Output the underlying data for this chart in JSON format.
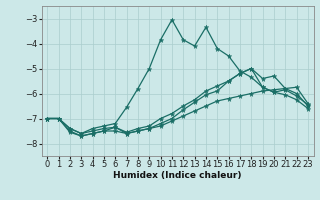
{
  "bg_color": "#cce8e8",
  "grid_color": "#aacece",
  "line_color": "#1a6e66",
  "xlabel": "Humidex (Indice chaleur)",
  "xlim": [
    -0.5,
    23.5
  ],
  "ylim": [
    -8.5,
    -2.5
  ],
  "yticks": [
    -8,
    -7,
    -6,
    -5,
    -4,
    -3
  ],
  "xticks": [
    0,
    1,
    2,
    3,
    4,
    5,
    6,
    7,
    8,
    9,
    10,
    11,
    12,
    13,
    14,
    15,
    16,
    17,
    18,
    19,
    20,
    21,
    22,
    23
  ],
  "series": [
    {
      "x": [
        0,
        1,
        2,
        3,
        4,
        5,
        6,
        7,
        8,
        9,
        10,
        11,
        12,
        13,
        14,
        15,
        16,
        17,
        18,
        19,
        20,
        21,
        22,
        23
      ],
      "y": [
        -7.0,
        -7.0,
        -7.5,
        -7.7,
        -7.6,
        -7.5,
        -7.5,
        -7.6,
        -7.5,
        -7.4,
        -7.3,
        -7.1,
        -6.9,
        -6.7,
        -6.5,
        -6.3,
        -6.2,
        -6.1,
        -6.0,
        -5.9,
        -5.85,
        -5.8,
        -5.75,
        -6.4
      ]
    },
    {
      "x": [
        0,
        1,
        2,
        3,
        4,
        5,
        6,
        7,
        8,
        9,
        10,
        11,
        12,
        13,
        14,
        15,
        16,
        17,
        18,
        19,
        20,
        21,
        22,
        23
      ],
      "y": [
        -7.0,
        -7.0,
        -7.4,
        -7.6,
        -7.5,
        -7.4,
        -7.35,
        -7.55,
        -7.4,
        -7.3,
        -7.0,
        -6.8,
        -6.5,
        -6.25,
        -5.9,
        -5.7,
        -5.5,
        -5.2,
        -5.0,
        -5.4,
        -5.3,
        -5.8,
        -6.0,
        -6.5
      ]
    },
    {
      "x": [
        0,
        1,
        2,
        3,
        4,
        5,
        6,
        7,
        8,
        9,
        10,
        11,
        12,
        13,
        14,
        15,
        16,
        17,
        18,
        19,
        20,
        21,
        22,
        23
      ],
      "y": [
        -7.0,
        -7.0,
        -7.4,
        -7.6,
        -7.4,
        -7.3,
        -7.2,
        -6.55,
        -5.8,
        -5.0,
        -3.85,
        -3.05,
        -3.85,
        -4.1,
        -3.35,
        -4.2,
        -4.5,
        -5.1,
        -5.35,
        -5.75,
        -5.95,
        -5.85,
        -6.1,
        -6.45
      ]
    },
    {
      "x": [
        0,
        1,
        2,
        3,
        4,
        5,
        6,
        7,
        8,
        9,
        10,
        11,
        12,
        13,
        14,
        15,
        16,
        17,
        18,
        19,
        20,
        21,
        22,
        23
      ],
      "y": [
        -7.0,
        -7.0,
        -7.55,
        -7.7,
        -7.6,
        -7.5,
        -7.35,
        -7.6,
        -7.5,
        -7.4,
        -7.2,
        -7.0,
        -6.65,
        -6.35,
        -6.05,
        -5.9,
        -5.5,
        -5.2,
        -5.0,
        -5.75,
        -5.95,
        -6.05,
        -6.25,
        -6.6
      ]
    }
  ]
}
